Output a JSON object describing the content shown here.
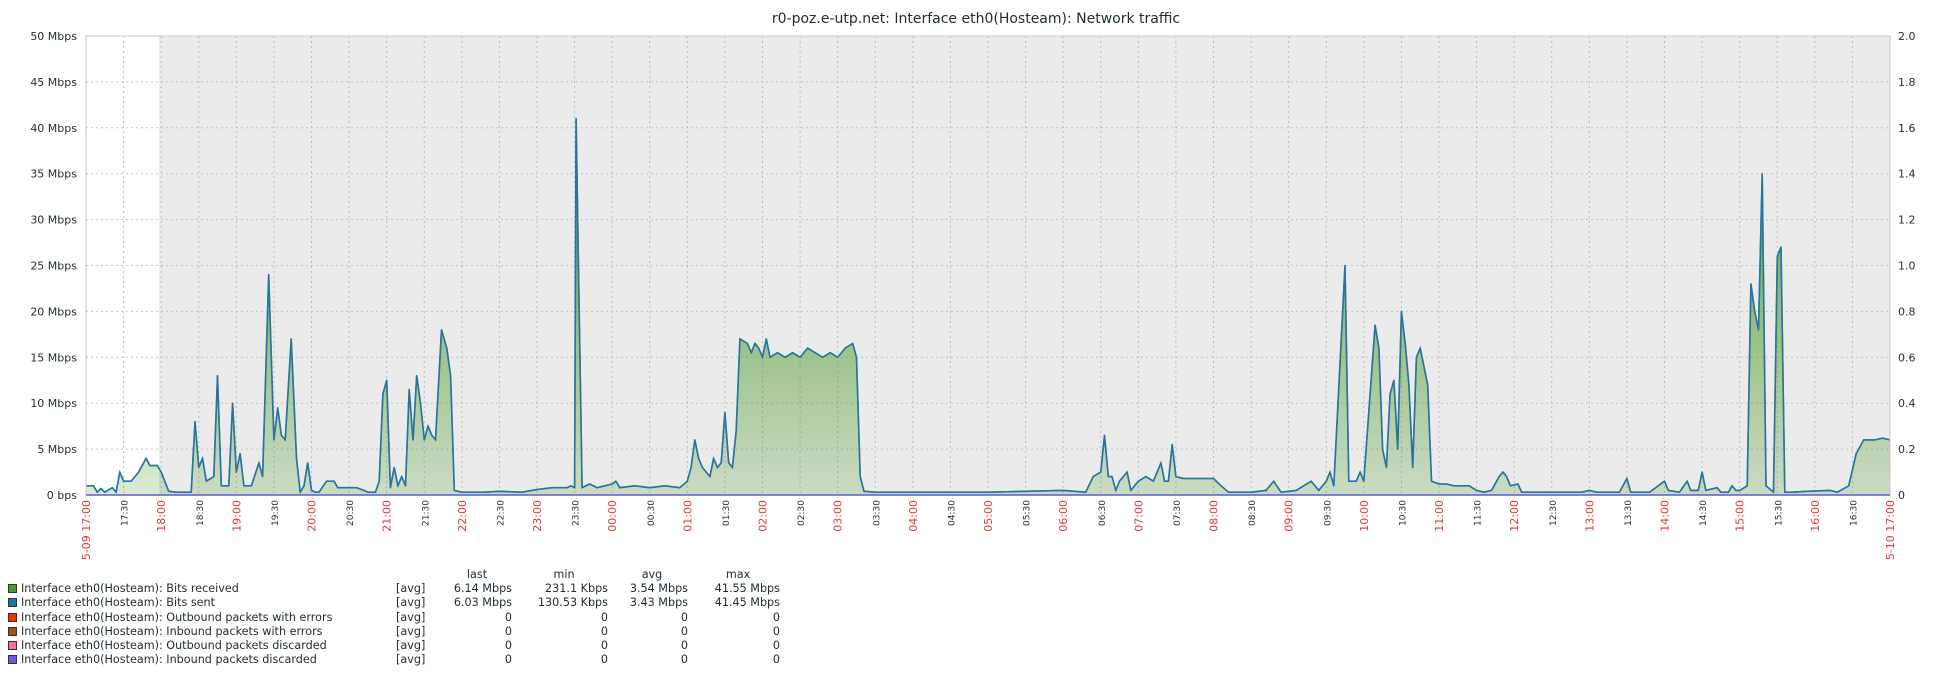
{
  "chart_data": {
    "type": "area",
    "title": "r0-poz.e-utp.net: Interface eth0(Hosteam): Network traffic",
    "y_left": {
      "unit": "Mbps",
      "ticks": [
        "50 Mbps",
        "45 Mbps",
        "40 Mbps",
        "35 Mbps",
        "30 Mbps",
        "25 Mbps",
        "20 Mbps",
        "15 Mbps",
        "10 Mbps",
        "5 Mbps",
        "0 bps"
      ],
      "ylim": [
        0,
        50
      ]
    },
    "y_right": {
      "ticks": [
        "2.0",
        "1.8",
        "1.6",
        "1.4",
        "1.2",
        "1.0",
        "0.8",
        "0.6",
        "0.4",
        "0.2",
        "0"
      ],
      "ylim": [
        0,
        2
      ]
    },
    "x_labels": [
      "05-09 17:00",
      "17:30",
      "18:00",
      "18:30",
      "19:00",
      "19:30",
      "20:00",
      "20:30",
      "21:00",
      "21:30",
      "22:00",
      "22:30",
      "23:00",
      "23:30",
      "00:00",
      "00:30",
      "01:00",
      "01:30",
      "02:00",
      "02:30",
      "03:00",
      "03:30",
      "04:00",
      "04:30",
      "05:00",
      "05:30",
      "06:00",
      "06:30",
      "07:00",
      "07:30",
      "08:00",
      "08:30",
      "09:00",
      "09:30",
      "10:00",
      "10:30",
      "11:00",
      "11:30",
      "12:00",
      "12:30",
      "13:00",
      "13:30",
      "14:00",
      "14:30",
      "15:00",
      "15:30",
      "16:00",
      "16:30",
      "05-10 17:00"
    ],
    "x_hours": [
      0,
      0.5,
      1,
      1.5,
      2,
      2.5,
      3,
      3.5,
      4,
      4.5,
      5,
      5.5,
      6,
      6.5,
      7,
      7.5,
      8,
      8.5,
      9,
      9.5,
      10,
      10.5,
      11,
      11.5,
      12,
      12.5,
      13,
      13.5,
      14,
      14.5,
      15,
      15.5,
      16,
      16.5,
      17,
      17.5,
      18,
      18.5,
      19,
      19.5,
      20,
      20.5,
      21,
      21.5,
      22,
      22.5,
      23,
      23.5,
      24
    ],
    "x_label_colors": {
      "hour": "#e33737",
      "half_hour": "#1f2c33"
    },
    "grid": true,
    "series": [
      {
        "name": "Interface eth0(Hosteam): Bits received",
        "color": "#4c9a2a",
        "points": [
          [
            0,
            1.0
          ],
          [
            0.1,
            1.0
          ],
          [
            0.15,
            0.3
          ],
          [
            0.2,
            0.7
          ],
          [
            0.25,
            0.3
          ],
          [
            0.35,
            0.8
          ],
          [
            0.4,
            0.3
          ],
          [
            0.45,
            2.5
          ],
          [
            0.5,
            1.5
          ],
          [
            0.6,
            1.5
          ],
          [
            0.7,
            2.5
          ],
          [
            0.8,
            4.0
          ],
          [
            0.85,
            3.2
          ],
          [
            0.95,
            3.2
          ],
          [
            1.0,
            2.5
          ],
          [
            1.1,
            0.4
          ],
          [
            1.2,
            0.3
          ],
          [
            1.4,
            0.3
          ],
          [
            1.45,
            8.0
          ],
          [
            1.5,
            3.0
          ],
          [
            1.55,
            4.0
          ],
          [
            1.6,
            1.5
          ],
          [
            1.7,
            2.0
          ],
          [
            1.75,
            13.0
          ],
          [
            1.8,
            1.0
          ],
          [
            1.9,
            1.0
          ],
          [
            1.95,
            10.0
          ],
          [
            2.0,
            2.5
          ],
          [
            2.05,
            4.5
          ],
          [
            2.1,
            1.0
          ],
          [
            2.2,
            1.0
          ],
          [
            2.3,
            3.5
          ],
          [
            2.35,
            2.0
          ],
          [
            2.43,
            24.0
          ],
          [
            2.5,
            6.0
          ],
          [
            2.55,
            9.5
          ],
          [
            2.6,
            6.5
          ],
          [
            2.65,
            6.0
          ],
          [
            2.73,
            17.0
          ],
          [
            2.8,
            4.0
          ],
          [
            2.85,
            0.3
          ],
          [
            2.9,
            1.0
          ],
          [
            2.95,
            3.5
          ],
          [
            3.0,
            0.5
          ],
          [
            3.05,
            0.3
          ],
          [
            3.1,
            0.3
          ],
          [
            3.2,
            1.5
          ],
          [
            3.3,
            1.5
          ],
          [
            3.35,
            0.8
          ],
          [
            3.5,
            0.8
          ],
          [
            3.6,
            0.8
          ],
          [
            3.7,
            0.5
          ],
          [
            3.75,
            0.3
          ],
          [
            3.85,
            0.3
          ],
          [
            3.9,
            1.5
          ],
          [
            3.95,
            11.0
          ],
          [
            4.0,
            12.5
          ],
          [
            4.05,
            0.8
          ],
          [
            4.1,
            3.0
          ],
          [
            4.15,
            1.0
          ],
          [
            4.2,
            2.0
          ],
          [
            4.25,
            1.0
          ],
          [
            4.3,
            11.5
          ],
          [
            4.35,
            6.0
          ],
          [
            4.4,
            13.0
          ],
          [
            4.45,
            10.0
          ],
          [
            4.5,
            6.0
          ],
          [
            4.55,
            7.5
          ],
          [
            4.6,
            6.5
          ],
          [
            4.65,
            6.0
          ],
          [
            4.73,
            18.0
          ],
          [
            4.8,
            16.0
          ],
          [
            4.85,
            13.0
          ],
          [
            4.9,
            0.5
          ],
          [
            5.0,
            0.3
          ],
          [
            5.3,
            0.3
          ],
          [
            5.5,
            0.4
          ],
          [
            5.8,
            0.3
          ],
          [
            6.0,
            0.6
          ],
          [
            6.2,
            0.8
          ],
          [
            6.4,
            0.8
          ],
          [
            6.45,
            1.0
          ],
          [
            6.5,
            0.8
          ],
          [
            6.52,
            41.0
          ],
          [
            6.55,
            26.0
          ],
          [
            6.6,
            0.8
          ],
          [
            6.7,
            1.2
          ],
          [
            6.8,
            0.8
          ],
          [
            7.0,
            1.2
          ],
          [
            7.05,
            1.5
          ],
          [
            7.1,
            0.8
          ],
          [
            7.3,
            1.0
          ],
          [
            7.5,
            0.8
          ],
          [
            7.7,
            1.0
          ],
          [
            7.9,
            0.8
          ],
          [
            8.0,
            1.5
          ],
          [
            8.05,
            3.0
          ],
          [
            8.1,
            6.0
          ],
          [
            8.15,
            4.0
          ],
          [
            8.2,
            3.0
          ],
          [
            8.3,
            2.0
          ],
          [
            8.35,
            4.0
          ],
          [
            8.4,
            3.0
          ],
          [
            8.45,
            3.5
          ],
          [
            8.5,
            9.0
          ],
          [
            8.55,
            3.5
          ],
          [
            8.6,
            3.0
          ],
          [
            8.65,
            7.0
          ],
          [
            8.7,
            17.0
          ],
          [
            8.8,
            16.5
          ],
          [
            8.85,
            15.5
          ],
          [
            8.9,
            16.5
          ],
          [
            8.95,
            16.0
          ],
          [
            9.0,
            15.0
          ],
          [
            9.05,
            17.0
          ],
          [
            9.1,
            15.0
          ],
          [
            9.2,
            15.5
          ],
          [
            9.3,
            15.0
          ],
          [
            9.4,
            15.5
          ],
          [
            9.5,
            15.0
          ],
          [
            9.6,
            16.0
          ],
          [
            9.7,
            15.5
          ],
          [
            9.8,
            15.0
          ],
          [
            9.9,
            15.5
          ],
          [
            10.0,
            15.0
          ],
          [
            10.1,
            16.0
          ],
          [
            10.2,
            16.5
          ],
          [
            10.25,
            15.0
          ],
          [
            10.3,
            2.0
          ],
          [
            10.35,
            0.4
          ],
          [
            10.5,
            0.3
          ],
          [
            11.0,
            0.3
          ],
          [
            12.0,
            0.3
          ],
          [
            12.5,
            0.4
          ],
          [
            13.0,
            0.5
          ],
          [
            13.3,
            0.3
          ],
          [
            13.4,
            2.0
          ],
          [
            13.5,
            2.5
          ],
          [
            13.55,
            6.5
          ],
          [
            13.6,
            2.0
          ],
          [
            13.65,
            2.0
          ],
          [
            13.7,
            0.5
          ],
          [
            13.75,
            1.5
          ],
          [
            13.8,
            2.0
          ],
          [
            13.85,
            2.5
          ],
          [
            13.9,
            0.5
          ],
          [
            14.0,
            1.5
          ],
          [
            14.1,
            2.0
          ],
          [
            14.2,
            1.5
          ],
          [
            14.3,
            3.5
          ],
          [
            14.35,
            1.5
          ],
          [
            14.4,
            1.5
          ],
          [
            14.45,
            5.5
          ],
          [
            14.5,
            2.0
          ],
          [
            14.6,
            1.8
          ],
          [
            15.0,
            1.8
          ],
          [
            15.1,
            1.0
          ],
          [
            15.2,
            0.3
          ],
          [
            15.5,
            0.3
          ],
          [
            15.7,
            0.5
          ],
          [
            15.8,
            1.5
          ],
          [
            15.9,
            0.3
          ],
          [
            16.1,
            0.5
          ],
          [
            16.3,
            1.5
          ],
          [
            16.4,
            0.5
          ],
          [
            16.5,
            1.5
          ],
          [
            16.55,
            2.5
          ],
          [
            16.6,
            1.0
          ],
          [
            16.75,
            25.0
          ],
          [
            16.8,
            1.5
          ],
          [
            16.9,
            1.5
          ],
          [
            16.95,
            2.5
          ],
          [
            17.0,
            1.5
          ],
          [
            17.15,
            18.5
          ],
          [
            17.2,
            16.0
          ],
          [
            17.25,
            5.0
          ],
          [
            17.3,
            3.0
          ],
          [
            17.35,
            11.0
          ],
          [
            17.4,
            12.5
          ],
          [
            17.45,
            5.0
          ],
          [
            17.5,
            20.0
          ],
          [
            17.55,
            16.5
          ],
          [
            17.6,
            12.0
          ],
          [
            17.65,
            3.0
          ],
          [
            17.7,
            15.0
          ],
          [
            17.75,
            16.0
          ],
          [
            17.85,
            12.0
          ],
          [
            17.9,
            1.5
          ],
          [
            18.0,
            1.2
          ],
          [
            18.1,
            1.2
          ],
          [
            18.2,
            1.0
          ],
          [
            18.4,
            1.0
          ],
          [
            18.5,
            0.5
          ],
          [
            18.6,
            0.3
          ],
          [
            18.7,
            0.5
          ],
          [
            18.8,
            2.0
          ],
          [
            18.85,
            2.5
          ],
          [
            18.9,
            2.0
          ],
          [
            18.95,
            1.0
          ],
          [
            19.05,
            1.2
          ],
          [
            19.1,
            0.3
          ],
          [
            19.5,
            0.3
          ],
          [
            19.9,
            0.3
          ],
          [
            20.0,
            0.5
          ],
          [
            20.1,
            0.3
          ],
          [
            20.4,
            0.3
          ],
          [
            20.5,
            1.8
          ],
          [
            20.55,
            0.3
          ],
          [
            20.8,
            0.3
          ],
          [
            21.0,
            1.5
          ],
          [
            21.05,
            0.5
          ],
          [
            21.2,
            0.3
          ],
          [
            21.3,
            1.5
          ],
          [
            21.35,
            0.5
          ],
          [
            21.45,
            0.5
          ],
          [
            21.5,
            2.5
          ],
          [
            21.55,
            0.5
          ],
          [
            21.7,
            0.8
          ],
          [
            21.75,
            0.3
          ],
          [
            21.85,
            0.3
          ],
          [
            21.9,
            1.0
          ],
          [
            21.95,
            0.5
          ],
          [
            22.0,
            0.5
          ],
          [
            22.1,
            1.0
          ],
          [
            22.15,
            23.0
          ],
          [
            22.2,
            20.0
          ],
          [
            22.25,
            18.0
          ],
          [
            22.3,
            35.0
          ],
          [
            22.35,
            1.0
          ],
          [
            22.45,
            0.3
          ],
          [
            22.5,
            26.0
          ],
          [
            22.55,
            27.0
          ],
          [
            22.6,
            0.3
          ],
          [
            22.7,
            0.3
          ],
          [
            22.9,
            0.4
          ],
          [
            23.2,
            0.5
          ],
          [
            23.3,
            0.3
          ],
          [
            23.45,
            1.0
          ],
          [
            23.55,
            4.5
          ],
          [
            23.65,
            6.0
          ],
          [
            23.8,
            6.0
          ],
          [
            23.9,
            6.2
          ],
          [
            24.0,
            6.0
          ]
        ]
      },
      {
        "name": "Interface eth0(Hosteam): Bits sent",
        "color": "#2774a4"
      },
      {
        "name": "Interface eth0(Hosteam): Outbound packets with errors",
        "color": "#f63100"
      },
      {
        "name": "Interface eth0(Hosteam): Inbound packets with errors",
        "color": "#a54f10"
      },
      {
        "name": "Interface eth0(Hosteam): Outbound packets discarded",
        "color": "#fc6ea3"
      },
      {
        "name": "Interface eth0(Hosteam): Inbound packets discarded",
        "color": "#6c59dc"
      }
    ]
  },
  "legend": {
    "headers": {
      "last": "last",
      "min": "min",
      "avg": "avg",
      "max": "max"
    },
    "rows": [
      {
        "color": "#4c9a2a",
        "name": "Interface eth0(Hosteam): Bits received",
        "func": "[avg]",
        "last": "6.14 Mbps",
        "min": "231.1 Kbps",
        "avg": "3.54 Mbps",
        "max": "41.55 Mbps"
      },
      {
        "color": "#2774a4",
        "name": "Interface eth0(Hosteam): Bits sent",
        "func": "[avg]",
        "last": "6.03 Mbps",
        "min": "130.53 Kbps",
        "avg": "3.43 Mbps",
        "max": "41.45 Mbps"
      },
      {
        "color": "#f63100",
        "name": "Interface eth0(Hosteam): Outbound packets with errors",
        "func": "[avg]",
        "last": "0",
        "min": "0",
        "avg": "0",
        "max": "0"
      },
      {
        "color": "#a54f10",
        "name": "Interface eth0(Hosteam): Inbound packets with errors",
        "func": "[avg]",
        "last": "0",
        "min": "0",
        "avg": "0",
        "max": "0"
      },
      {
        "color": "#fc6ea3",
        "name": "Interface eth0(Hosteam): Outbound packets discarded",
        "func": "[avg]",
        "last": "0",
        "min": "0",
        "avg": "0",
        "max": "0"
      },
      {
        "color": "#6c59dc",
        "name": "Interface eth0(Hosteam): Inbound packets discarded",
        "func": "[avg]",
        "last": "0",
        "min": "0",
        "avg": "0",
        "max": "0"
      }
    ]
  }
}
